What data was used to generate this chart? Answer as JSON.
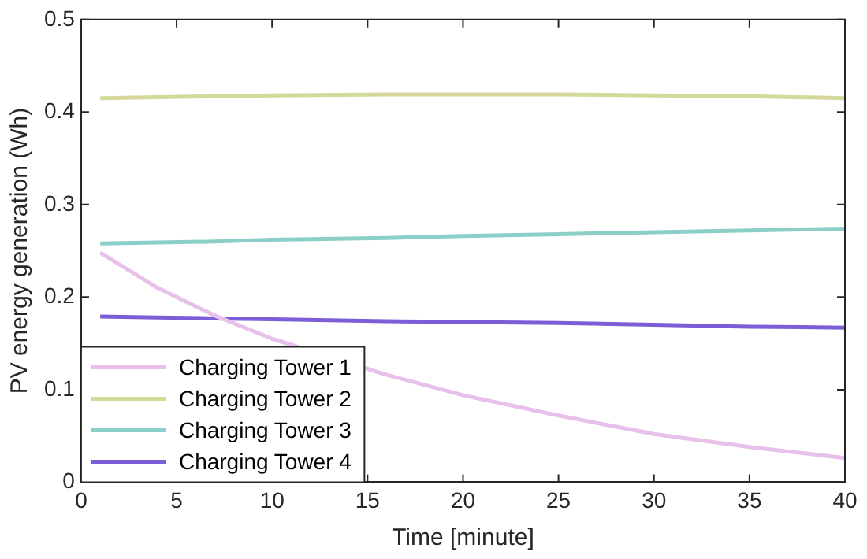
{
  "chart_data": {
    "type": "line",
    "xlabel": "Time [minute]",
    "ylabel": "PV energy generation (Wh)",
    "xlim": [
      0,
      40
    ],
    "xticks": [
      0,
      5,
      10,
      15,
      20,
      25,
      30,
      35,
      40
    ],
    "ylim": [
      0,
      0.5
    ],
    "yticks": [
      0,
      0.1,
      0.2,
      0.3,
      0.4,
      0.5
    ],
    "grid": false,
    "legend": "bottom left",
    "marker": "none",
    "line_style": "solid",
    "x": [
      1,
      4,
      7,
      10,
      16,
      20,
      25,
      30,
      35,
      40
    ],
    "series": [
      {
        "name": "Charging Tower 1",
        "color": "#e8c0ea",
        "values": [
          0.248,
          0.21,
          0.18,
          0.155,
          0.116,
          0.094,
          0.072,
          0.052,
          0.038,
          0.026
        ]
      },
      {
        "name": "Charging Tower 2",
        "color": "#d4d89a",
        "values": [
          0.415,
          0.416,
          0.417,
          0.418,
          0.419,
          0.419,
          0.419,
          0.418,
          0.417,
          0.415
        ]
      },
      {
        "name": "Charging Tower 3",
        "color": "#8ccfc8",
        "values": [
          0.258,
          0.259,
          0.26,
          0.262,
          0.264,
          0.266,
          0.268,
          0.27,
          0.272,
          0.274
        ]
      },
      {
        "name": "Charging Tower 4",
        "color": "#7b5ed8",
        "values": [
          0.179,
          0.178,
          0.177,
          0.176,
          0.174,
          0.173,
          0.172,
          0.17,
          0.168,
          0.167
        ]
      }
    ]
  }
}
